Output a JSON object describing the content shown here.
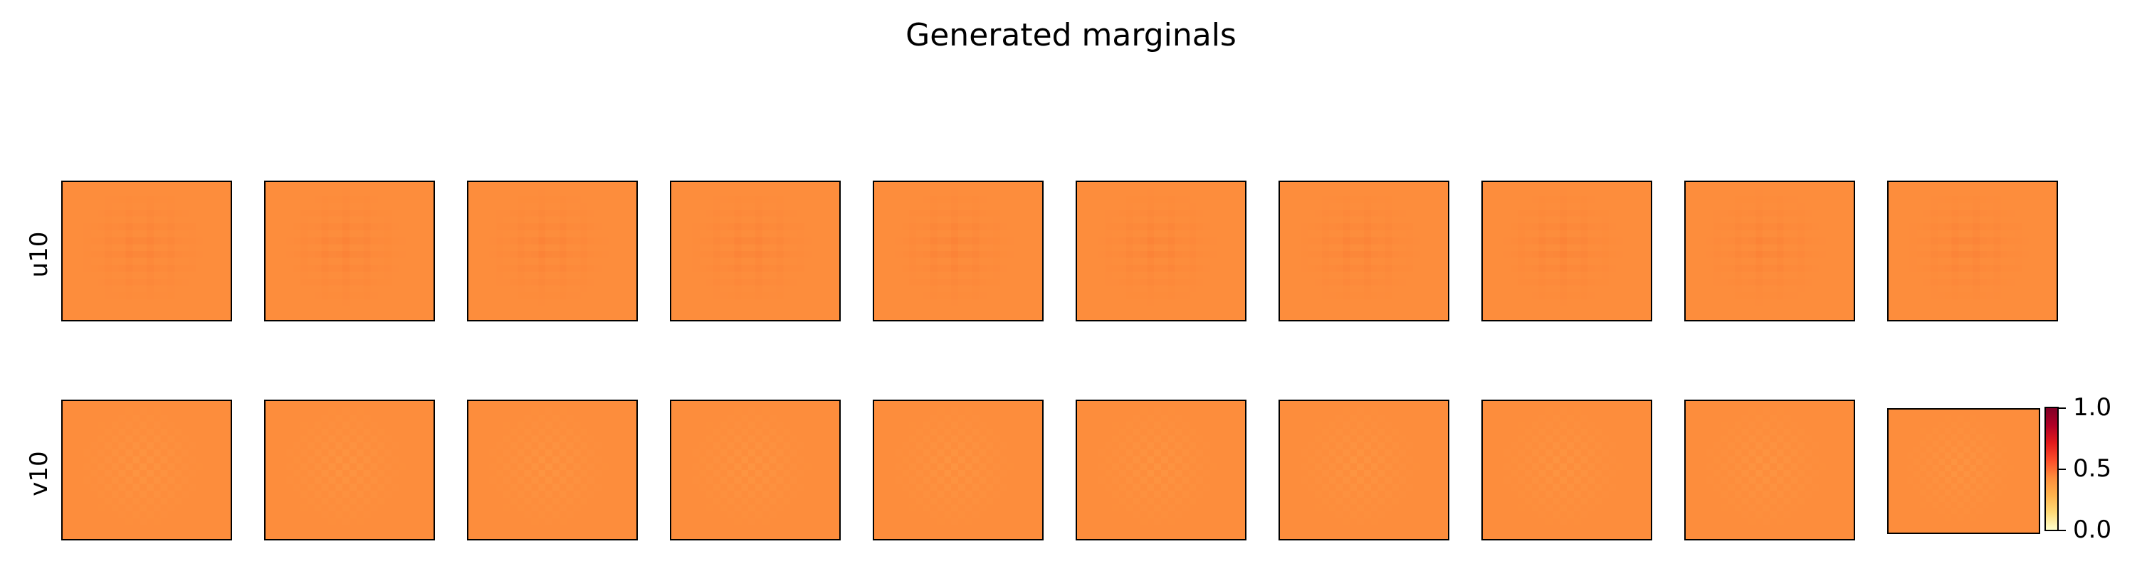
{
  "figure": {
    "title": "Generated marginals"
  },
  "chart_data": {
    "type": "heatmap",
    "title": "Generated marginals",
    "rows": [
      {
        "label": "u10",
        "panel_count": 10,
        "pattern": "horizontal-stripes",
        "base_value": 0.62
      },
      {
        "label": "v10",
        "panel_count": 10,
        "pattern": "checkerboard",
        "base_value": 0.6
      }
    ],
    "colorbar": {
      "min": 0.0,
      "max": 1.0,
      "ticks": [
        "1.0",
        "0.5",
        "0.0"
      ],
      "colormap": "YlOrRd"
    },
    "colors": {
      "base": "#fd8d3c",
      "light": "#fda04a",
      "dark": "#fb7a33"
    }
  }
}
